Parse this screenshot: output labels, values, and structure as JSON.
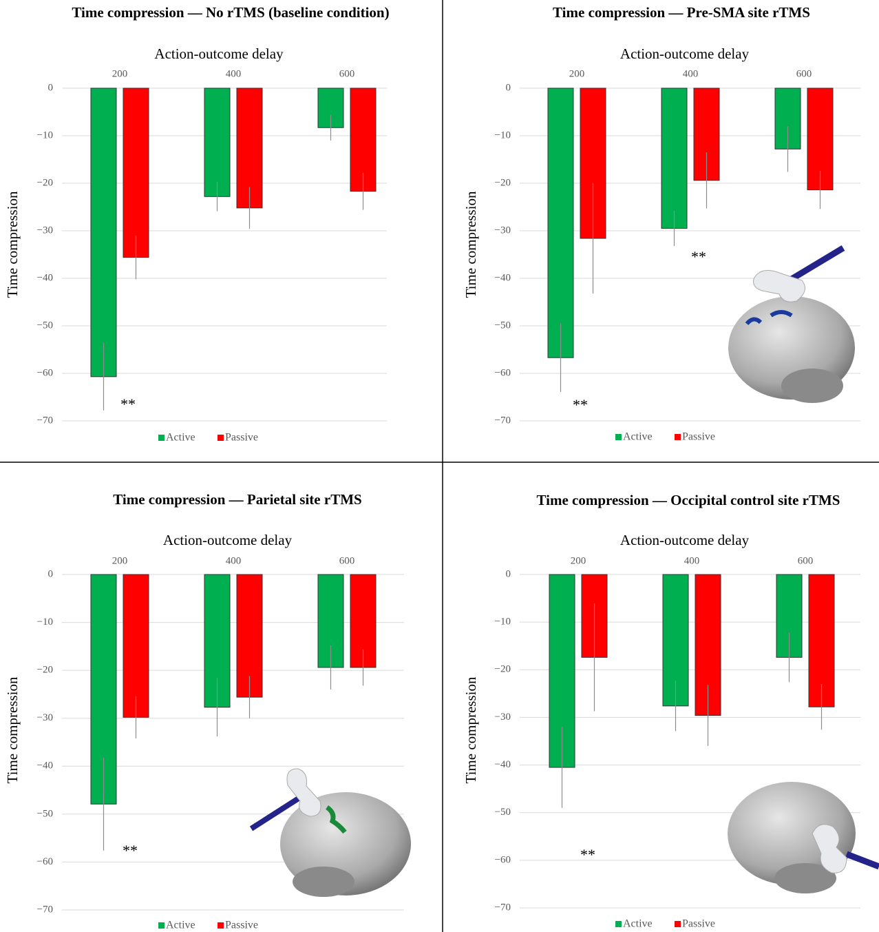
{
  "chart_data": [
    {
      "type": "bar",
      "title": "Time compression — No rTMS (baseline condition)",
      "x_axis_label": "Action-outcome delay",
      "y_axis_label": "Time compression",
      "categories": [
        "200",
        "400",
        "600"
      ],
      "series": [
        {
          "name": "Active",
          "color": "#00b050",
          "values": [
            -60.7,
            -22.8,
            -8.3
          ],
          "errors": [
            7.1,
            3.1,
            2.7
          ]
        },
        {
          "name": "Passive",
          "color": "#ff0000",
          "values": [
            -35.6,
            -25.2,
            -21.7
          ],
          "errors": [
            4.6,
            4.4,
            3.9
          ]
        }
      ],
      "ylim": [
        0,
        -70
      ],
      "yticks": [
        0,
        {
          "value": -10,
          "label": "−10"
        },
        {
          "value": -20,
          "label": "−20"
        },
        {
          "value": -30,
          "label": "−30"
        },
        {
          "value": -40,
          "label": "−40"
        },
        {
          "value": -50,
          "label": "−50"
        },
        {
          "value": -60,
          "label": "−60"
        },
        {
          "value": -70,
          "label": "−70"
        }
      ],
      "grid": true,
      "legend": "bottom",
      "annotations": [
        "**"
      ]
    },
    {
      "type": "bar",
      "title": "Time compression — Pre-SMA site rTMS",
      "x_axis_label": "Action-outcome delay",
      "y_axis_label": "Time compression",
      "categories": [
        "200",
        "400",
        "600"
      ],
      "series": [
        {
          "name": "Active",
          "color": "#00b050",
          "values": [
            -56.7,
            -29.5,
            -12.8
          ],
          "errors": [
            7.2,
            3.7,
            4.8
          ]
        },
        {
          "name": "Passive",
          "color": "#ff0000",
          "values": [
            -31.6,
            -19.4,
            -21.4
          ],
          "errors": [
            11.6,
            5.9,
            4.0
          ]
        }
      ],
      "ylim": [
        0,
        -70
      ],
      "yticks": [
        0,
        {
          "value": -10,
          "label": "−10"
        },
        {
          "value": -20,
          "label": "−20"
        },
        {
          "value": -30,
          "label": "−30"
        },
        {
          "value": -40,
          "label": "−40"
        },
        {
          "value": -50,
          "label": "−50"
        },
        {
          "value": -60,
          "label": "−60"
        },
        {
          "value": -70,
          "label": "−70"
        }
      ],
      "grid": true,
      "legend": "bottom",
      "annotations": [
        "**",
        "**"
      ]
    },
    {
      "type": "bar",
      "title": "Time compression — Parietal site rTMS",
      "x_axis_label": "Action-outcome delay",
      "y_axis_label": "Time compression",
      "categories": [
        "200",
        "400",
        "600"
      ],
      "series": [
        {
          "name": "Active",
          "color": "#00b050",
          "values": [
            -47.9,
            -27.7,
            -19.4
          ],
          "errors": [
            9.7,
            6.1,
            4.6
          ]
        },
        {
          "name": "Passive",
          "color": "#ff0000",
          "values": [
            -29.8,
            -25.6,
            -19.4
          ],
          "errors": [
            4.4,
            4.4,
            3.8
          ]
        }
      ],
      "ylim": [
        0,
        -70
      ],
      "yticks": [
        0,
        {
          "value": -10,
          "label": "−10"
        },
        {
          "value": -20,
          "label": "−20"
        },
        {
          "value": -30,
          "label": "−30"
        },
        {
          "value": -40,
          "label": "−40"
        },
        {
          "value": -50,
          "label": "−50"
        },
        {
          "value": -60,
          "label": "−60"
        },
        {
          "value": -70,
          "label": "−70"
        }
      ],
      "grid": true,
      "legend": "bottom",
      "annotations": [
        "**"
      ]
    },
    {
      "type": "bar",
      "title": "Time compression — Occipital control site rTMS",
      "x_axis_label": "Action-outcome delay",
      "y_axis_label": "Time compression",
      "categories": [
        "200",
        "400",
        "600"
      ],
      "series": [
        {
          "name": "Active",
          "color": "#00b050",
          "values": [
            -40.5,
            -27.6,
            -17.4
          ],
          "errors": [
            8.5,
            5.3,
            5.2
          ]
        },
        {
          "name": "Passive",
          "color": "#ff0000",
          "values": [
            -17.4,
            -29.6,
            -27.8
          ],
          "errors": [
            11.3,
            6.4,
            4.8
          ]
        }
      ],
      "ylim": [
        0,
        -70
      ],
      "yticks": [
        0,
        {
          "value": -10,
          "label": "−10"
        },
        {
          "value": -20,
          "label": "−20"
        },
        {
          "value": -30,
          "label": "−30"
        },
        {
          "value": -40,
          "label": "−40"
        },
        {
          "value": -50,
          "label": "−50"
        },
        {
          "value": -60,
          "label": "−60"
        },
        {
          "value": -70,
          "label": "−70"
        }
      ],
      "grid": true,
      "legend": "bottom",
      "annotations": [
        "**"
      ]
    }
  ]
}
